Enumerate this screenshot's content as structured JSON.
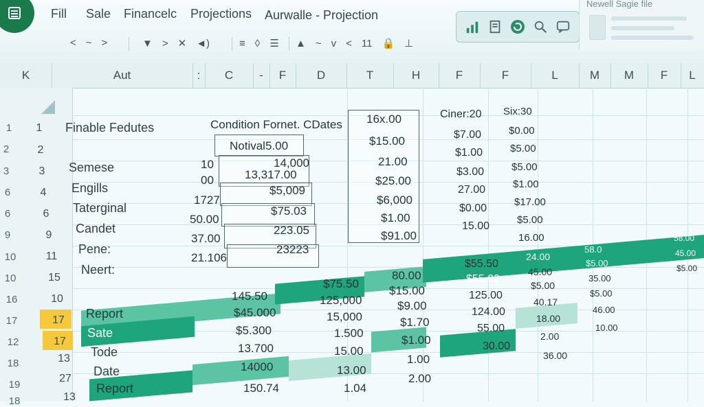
{
  "ribbon": {
    "menu": [
      "Fill",
      "Sale",
      "Financelc",
      "Projections"
    ],
    "doc_title": "Aurwalle - Projection",
    "toolbar_a": [
      "<",
      "~",
      ">"
    ],
    "toolbar_b": [
      "▼",
      ">",
      "✕",
      "◄)"
    ],
    "toolbar_c": [
      "≡",
      "◊",
      "☰"
    ],
    "toolbar_d": [
      "▲",
      "~",
      "v",
      "<",
      "11",
      "🔒",
      "⊥"
    ],
    "side_panel_title": "Newell Sagie file"
  },
  "columns": [
    "K",
    "Aut",
    ":",
    "C",
    "-",
    "F",
    "D",
    "T",
    "H",
    "F",
    "F",
    "L",
    "M",
    "M",
    "F",
    "L"
  ],
  "row_numbers_outer": [
    "1",
    "2",
    "3",
    "6",
    "6",
    "9",
    "10",
    "10",
    "16",
    "17",
    "12",
    "18",
    "19",
    "18"
  ],
  "row_numbers": [
    "1",
    "2",
    "3",
    "4",
    "6",
    "9",
    "11",
    "15",
    "10",
    "17",
    "17",
    "13",
    "27",
    "13"
  ],
  "sheet": {
    "title_cell": "Finable Fedutes",
    "header_condition": "Condition Fornet. CDates",
    "header_value": "16x.00",
    "header_ciner": "Ciner:20",
    "header_six": "Six:30",
    "b_col": [
      "Semese",
      "Engills",
      "Taterginal",
      "Candet",
      "Pene:",
      "Neert:"
    ],
    "c_col": [
      "10",
      "00",
      "1727",
      "50.00",
      "37.00",
      "21.106"
    ],
    "d_col": [
      "Notival5.00",
      "14,000",
      "13,317.00",
      "$5,009",
      "$75.03",
      "223.05",
      "23223"
    ],
    "e_col": [
      "$15.00",
      "21.00",
      "$25.00",
      "$6,000",
      "$1.00",
      "$91.00"
    ],
    "f_col": [
      "$7.00",
      "$1.00",
      "$3.00",
      "27.00",
      "$0.00",
      "15.00"
    ],
    "g_col": [
      "$0.00",
      "$5.00",
      "$5.00",
      "$1.00",
      "$17.00",
      "$5.00",
      "16.00"
    ],
    "lower": {
      "labels": [
        "Report",
        "Sate",
        "Tode",
        "Date",
        "Report"
      ],
      "col_c": [
        "145.50",
        "$45.000",
        "$5.300",
        "13.700",
        "14000",
        "150.74"
      ],
      "col_d": [
        "$75.50",
        "125,000",
        "15,000",
        "1.500",
        "15.00",
        "13.00",
        "1.04"
      ],
      "col_e": [
        "80.00",
        "$15.00",
        "$9.00",
        "$1.70",
        "$1.00",
        "1.00",
        "2.00"
      ],
      "col_f": [
        "$55.50",
        "$55.00",
        "125.00",
        "124.00",
        "55.00",
        "30.00"
      ],
      "col_g": [
        "24.00",
        "45.00",
        "$5.00",
        "40.17",
        "18.00",
        "2.00",
        "36.00"
      ],
      "col_h": [
        "58.0",
        "$5.00",
        "35.00",
        "$5.00",
        "46.00",
        "10.00"
      ],
      "col_i": [
        "58.00",
        "45.00",
        "$5.00"
      ]
    }
  },
  "colors": {
    "accent": "#1fa57b",
    "accent_light": "#5cc4a3",
    "highlight": "#f6c83c",
    "app_icon": "#1a7a4c"
  },
  "icons": [
    "app-logo-icon",
    "bar-chart-icon",
    "document-icon",
    "refresh-icon",
    "search-icon",
    "comment-icon"
  ]
}
